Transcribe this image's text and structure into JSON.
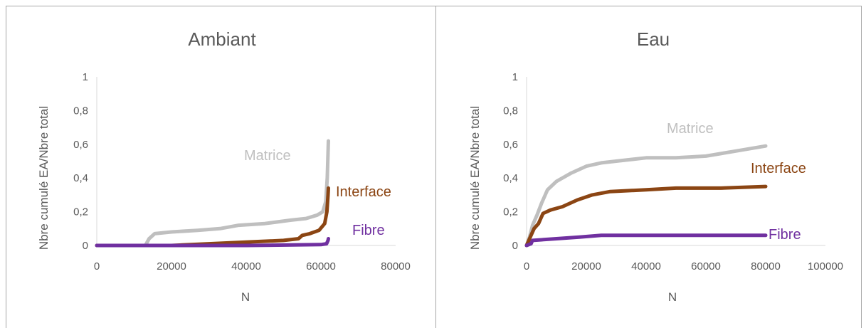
{
  "chart_data": [
    {
      "type": "line",
      "title": "Ambiant",
      "xlabel": "N",
      "ylabel": "Nbre cumulé EA/Nbre total",
      "xlim": [
        0,
        80000
      ],
      "ylim": [
        0,
        1
      ],
      "xticks": [
        "0",
        "20000",
        "40000",
        "60000",
        "80000"
      ],
      "yticks": [
        "0",
        "0,2",
        "0,4",
        "0,6",
        "0,8",
        "1"
      ],
      "grid": false,
      "legend": "inline labels",
      "series": [
        {
          "name": "Matrice",
          "color": "#bfbfbf",
          "points": [
            [
              0,
              0
            ],
            [
              13000,
              0
            ],
            [
              14000,
              0.04
            ],
            [
              15500,
              0.07
            ],
            [
              20000,
              0.08
            ],
            [
              27000,
              0.09
            ],
            [
              33000,
              0.1
            ],
            [
              38000,
              0.12
            ],
            [
              45000,
              0.13
            ],
            [
              52000,
              0.15
            ],
            [
              56000,
              0.16
            ],
            [
              59000,
              0.18
            ],
            [
              60500,
              0.2
            ],
            [
              61300,
              0.26
            ],
            [
              61700,
              0.4
            ],
            [
              61900,
              0.55
            ],
            [
              62000,
              0.62
            ]
          ]
        },
        {
          "name": "Interface",
          "color": "#8b4513",
          "points": [
            [
              0,
              0
            ],
            [
              20000,
              0
            ],
            [
              30000,
              0.01
            ],
            [
              40000,
              0.02
            ],
            [
              50000,
              0.03
            ],
            [
              54000,
              0.04
            ],
            [
              55000,
              0.06
            ],
            [
              57000,
              0.07
            ],
            [
              59500,
              0.09
            ],
            [
              61000,
              0.13
            ],
            [
              61600,
              0.2
            ],
            [
              61900,
              0.3
            ],
            [
              62000,
              0.34
            ]
          ]
        },
        {
          "name": "Fibre",
          "color": "#7030a0",
          "points": [
            [
              0,
              0
            ],
            [
              40000,
              0
            ],
            [
              60000,
              0.005
            ],
            [
              61500,
              0.01
            ],
            [
              61900,
              0.03
            ],
            [
              62000,
              0.04
            ]
          ]
        }
      ]
    },
    {
      "type": "line",
      "title": "Eau",
      "xlabel": "N",
      "ylabel": "Nbre cumulé EA/Nbre total",
      "xlim": [
        0,
        100000
      ],
      "ylim": [
        0,
        1
      ],
      "xticks": [
        "0",
        "20000",
        "40000",
        "60000",
        "80000",
        "100000"
      ],
      "yticks": [
        "0",
        "0,2",
        "0,4",
        "0,6",
        "0,8",
        "1"
      ],
      "grid": false,
      "legend": "inline labels",
      "series": [
        {
          "name": "Matrice",
          "color": "#bfbfbf",
          "points": [
            [
              0,
              0
            ],
            [
              1000,
              0.05
            ],
            [
              2000,
              0.12
            ],
            [
              3500,
              0.18
            ],
            [
              5000,
              0.25
            ],
            [
              7000,
              0.33
            ],
            [
              10000,
              0.38
            ],
            [
              15000,
              0.43
            ],
            [
              20000,
              0.47
            ],
            [
              25000,
              0.49
            ],
            [
              30000,
              0.5
            ],
            [
              40000,
              0.52
            ],
            [
              50000,
              0.52
            ],
            [
              60000,
              0.53
            ],
            [
              70000,
              0.56
            ],
            [
              80000,
              0.59
            ]
          ]
        },
        {
          "name": "Interface",
          "color": "#8b4513",
          "points": [
            [
              0,
              0
            ],
            [
              1000,
              0.04
            ],
            [
              2500,
              0.1
            ],
            [
              4000,
              0.13
            ],
            [
              5500,
              0.19
            ],
            [
              8000,
              0.21
            ],
            [
              12000,
              0.23
            ],
            [
              17000,
              0.27
            ],
            [
              22000,
              0.3
            ],
            [
              28000,
              0.32
            ],
            [
              40000,
              0.33
            ],
            [
              50000,
              0.34
            ],
            [
              65000,
              0.34
            ],
            [
              80000,
              0.35
            ]
          ]
        },
        {
          "name": "Fibre",
          "color": "#7030a0",
          "points": [
            [
              0,
              0
            ],
            [
              1500,
              0.01
            ],
            [
              2000,
              0.03
            ],
            [
              10000,
              0.04
            ],
            [
              18000,
              0.05
            ],
            [
              25000,
              0.06
            ],
            [
              40000,
              0.06
            ],
            [
              60000,
              0.06
            ],
            [
              80000,
              0.06
            ]
          ]
        }
      ]
    }
  ]
}
